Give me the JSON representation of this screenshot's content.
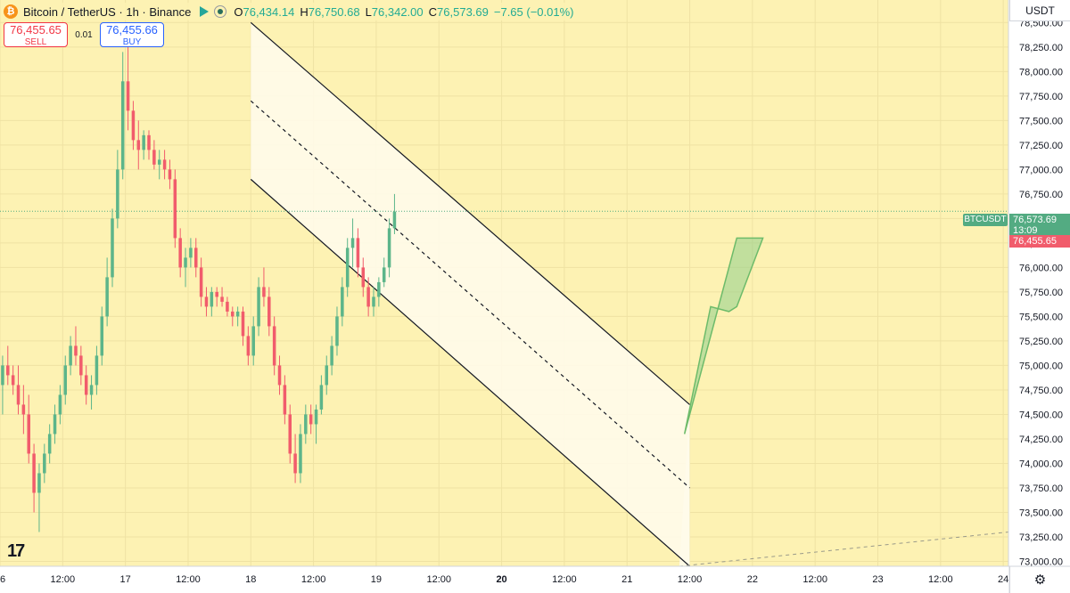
{
  "legend": {
    "coin_glyph": "₿",
    "symbol": "Bitcoin / TetherUS · 1h · Binance",
    "o_label": "O",
    "o": "76,434.14",
    "h_label": "H",
    "h": "76,750.68",
    "l_label": "L",
    "l": "76,342.00",
    "c_label": "C",
    "c": "76,573.69",
    "change": "−7.65 (−0.01%)"
  },
  "trade": {
    "sell_price": "76,455.65",
    "sell_label": "SELL",
    "spread": "0.01",
    "buy_price": "76,455.66",
    "buy_label": "BUY"
  },
  "price_scale": {
    "currency": "USDT",
    "symbol_tag": "BTCUSDT",
    "last_price": "76,573.69",
    "countdown": "13:09",
    "bid_price": "76,455.65"
  },
  "colors": {
    "up": "#5cb58a",
    "down": "#f15c6c",
    "background": "#fdf2b3"
  },
  "icons": {
    "logo": "tradingview-logo-icon",
    "settings": "gear-icon"
  },
  "chart_data": {
    "type": "candlestick",
    "y_axis": {
      "ylim": [
        72950,
        78730
      ],
      "ticks": [
        73000,
        73250,
        73500,
        73750,
        74000,
        74250,
        74500,
        74750,
        75000,
        75250,
        75500,
        75750,
        76000,
        76250,
        76500,
        76750,
        77000,
        77250,
        77500,
        77750,
        78000,
        78250,
        78500
      ],
      "tick_labels": [
        "73,000.00",
        "73,250.00",
        "73,500.00",
        "73,750.00",
        "74,000.00",
        "74,250.00",
        "74,500.00",
        "74,750.00",
        "75,000.00",
        "75,250.00",
        "75,500.00",
        "75,750.00",
        "76,000.00",
        "76,250.00",
        "76,500.00",
        "76,750.00",
        "77,000.00",
        "77,250.00",
        "77,500.00",
        "77,750.00",
        "78,000.00",
        "78,250.00",
        "78,500.00"
      ]
    },
    "x_axis": {
      "labels": [
        "16",
        "12:00",
        "17",
        "12:00",
        "18",
        "12:00",
        "19",
        "12:00",
        "20",
        "12:00",
        "21",
        "12:00",
        "22",
        "12:00",
        "23",
        "12:00",
        "24"
      ],
      "label_hours": [
        0,
        12,
        24,
        36,
        48,
        60,
        72,
        84,
        96,
        108,
        120,
        132,
        144,
        156,
        168,
        180,
        192
      ],
      "bold_labels": [
        "20"
      ],
      "hour_range": [
        0,
        193
      ]
    },
    "candles": [
      [
        74.8,
        75.1,
        74.5,
        75.0
      ],
      [
        75.0,
        75.2,
        74.8,
        74.9
      ],
      [
        74.9,
        75.0,
        74.7,
        74.8
      ],
      [
        74.8,
        75.0,
        74.5,
        74.6
      ],
      [
        74.6,
        74.8,
        74.3,
        74.5
      ],
      [
        74.5,
        74.7,
        74.0,
        74.1
      ],
      [
        74.1,
        74.2,
        73.5,
        73.7
      ],
      [
        73.7,
        74.0,
        73.3,
        73.9
      ],
      [
        73.9,
        74.2,
        73.8,
        74.1
      ],
      [
        74.1,
        74.4,
        74.0,
        74.3
      ],
      [
        74.3,
        74.6,
        74.2,
        74.5
      ],
      [
        74.5,
        74.8,
        74.4,
        74.7
      ],
      [
        74.7,
        75.1,
        74.6,
        75.0
      ],
      [
        75.0,
        75.3,
        74.9,
        75.2
      ],
      [
        75.2,
        75.4,
        75.0,
        75.1
      ],
      [
        75.1,
        75.2,
        74.8,
        74.9
      ],
      [
        74.9,
        75.0,
        74.6,
        74.7
      ],
      [
        74.7,
        74.9,
        74.55,
        74.8
      ],
      [
        74.8,
        75.2,
        74.7,
        75.1
      ],
      [
        75.1,
        75.6,
        75.0,
        75.5
      ],
      [
        75.5,
        76.1,
        75.4,
        75.9
      ],
      [
        75.9,
        76.6,
        75.8,
        76.5
      ],
      [
        76.5,
        77.2,
        76.4,
        77.0
      ],
      [
        77.0,
        78.2,
        76.9,
        77.9
      ],
      [
        77.9,
        78.3,
        77.4,
        77.6
      ],
      [
        77.6,
        77.7,
        77.2,
        77.3
      ],
      [
        77.3,
        77.5,
        77.0,
        77.2
      ],
      [
        77.2,
        77.4,
        77.1,
        77.35
      ],
      [
        77.35,
        77.4,
        77.1,
        77.2
      ],
      [
        77.2,
        77.3,
        77.0,
        77.05
      ],
      [
        77.05,
        77.2,
        76.9,
        77.1
      ],
      [
        77.1,
        77.2,
        76.9,
        77.0
      ],
      [
        77.0,
        77.1,
        76.8,
        76.9
      ],
      [
        76.9,
        77.0,
        76.2,
        76.3
      ],
      [
        76.3,
        76.4,
        75.9,
        76.0
      ],
      [
        76.0,
        76.2,
        75.8,
        76.1
      ],
      [
        76.1,
        76.3,
        76.0,
        76.2
      ],
      [
        76.2,
        76.3,
        75.9,
        76.0
      ],
      [
        76.0,
        76.1,
        75.6,
        75.7
      ],
      [
        75.7,
        75.8,
        75.5,
        75.6
      ],
      [
        75.6,
        75.8,
        75.5,
        75.75
      ],
      [
        75.75,
        75.8,
        75.6,
        75.7
      ],
      [
        75.7,
        75.8,
        75.6,
        75.65
      ],
      [
        75.65,
        75.7,
        75.5,
        75.55
      ],
      [
        75.55,
        75.6,
        75.4,
        75.5
      ],
      [
        75.5,
        75.6,
        75.4,
        75.55
      ],
      [
        75.55,
        75.6,
        75.2,
        75.3
      ],
      [
        75.3,
        75.4,
        75.0,
        75.1
      ],
      [
        75.1,
        75.5,
        75.0,
        75.4
      ],
      [
        75.4,
        75.9,
        75.3,
        75.8
      ],
      [
        75.8,
        76.0,
        75.6,
        75.7
      ],
      [
        75.7,
        75.8,
        75.3,
        75.4
      ],
      [
        75.4,
        75.5,
        74.9,
        75.0
      ],
      [
        75.0,
        75.1,
        74.7,
        74.8
      ],
      [
        74.8,
        74.9,
        74.4,
        74.5
      ],
      [
        74.5,
        74.6,
        74.0,
        74.1
      ],
      [
        74.1,
        74.3,
        73.8,
        73.9
      ],
      [
        73.9,
        74.4,
        73.8,
        74.3
      ],
      [
        74.3,
        74.6,
        74.2,
        74.5
      ],
      [
        74.5,
        74.6,
        74.3,
        74.4
      ],
      [
        74.4,
        74.6,
        74.2,
        74.55
      ],
      [
        74.55,
        74.9,
        74.5,
        74.8
      ],
      [
        74.8,
        75.1,
        74.7,
        75.0
      ],
      [
        75.0,
        75.3,
        74.9,
        75.2
      ],
      [
        75.2,
        75.6,
        75.1,
        75.5
      ],
      [
        75.5,
        75.9,
        75.4,
        75.8
      ],
      [
        75.8,
        76.3,
        75.7,
        76.2
      ],
      [
        76.2,
        76.5,
        76.0,
        76.3
      ],
      [
        76.3,
        76.4,
        75.9,
        76.0
      ],
      [
        76.0,
        76.1,
        75.7,
        75.8
      ],
      [
        75.8,
        75.9,
        75.5,
        75.6
      ],
      [
        75.6,
        75.8,
        75.5,
        75.7
      ],
      [
        75.7,
        75.9,
        75.6,
        75.85
      ],
      [
        75.85,
        76.1,
        75.8,
        76.0
      ],
      [
        76.0,
        76.5,
        75.9,
        76.4
      ],
      [
        76.4,
        76.75,
        76.34,
        76.57
      ]
    ],
    "candle_units": "thousand USDT",
    "annotations": {
      "channel_upper": [
        [
          48,
          78.5
        ],
        [
          132,
          74.6
        ]
      ],
      "channel_middle": [
        [
          48,
          77.7
        ],
        [
          132,
          73.75
        ]
      ],
      "channel_lower": [
        [
          48,
          76.9
        ],
        [
          132,
          72.95
        ]
      ],
      "green_arrow_points": [
        [
          131,
          74.3
        ],
        [
          141,
          76.3
        ],
        [
          146,
          76.3
        ],
        [
          141,
          75.6
        ],
        [
          139.5,
          75.55
        ],
        [
          136,
          75.6
        ]
      ],
      "lower_dashed": [
        [
          130,
          72.95
        ],
        [
          193,
          73.3
        ]
      ]
    },
    "last_price": 76573.69,
    "bid_price": 76455.65
  }
}
